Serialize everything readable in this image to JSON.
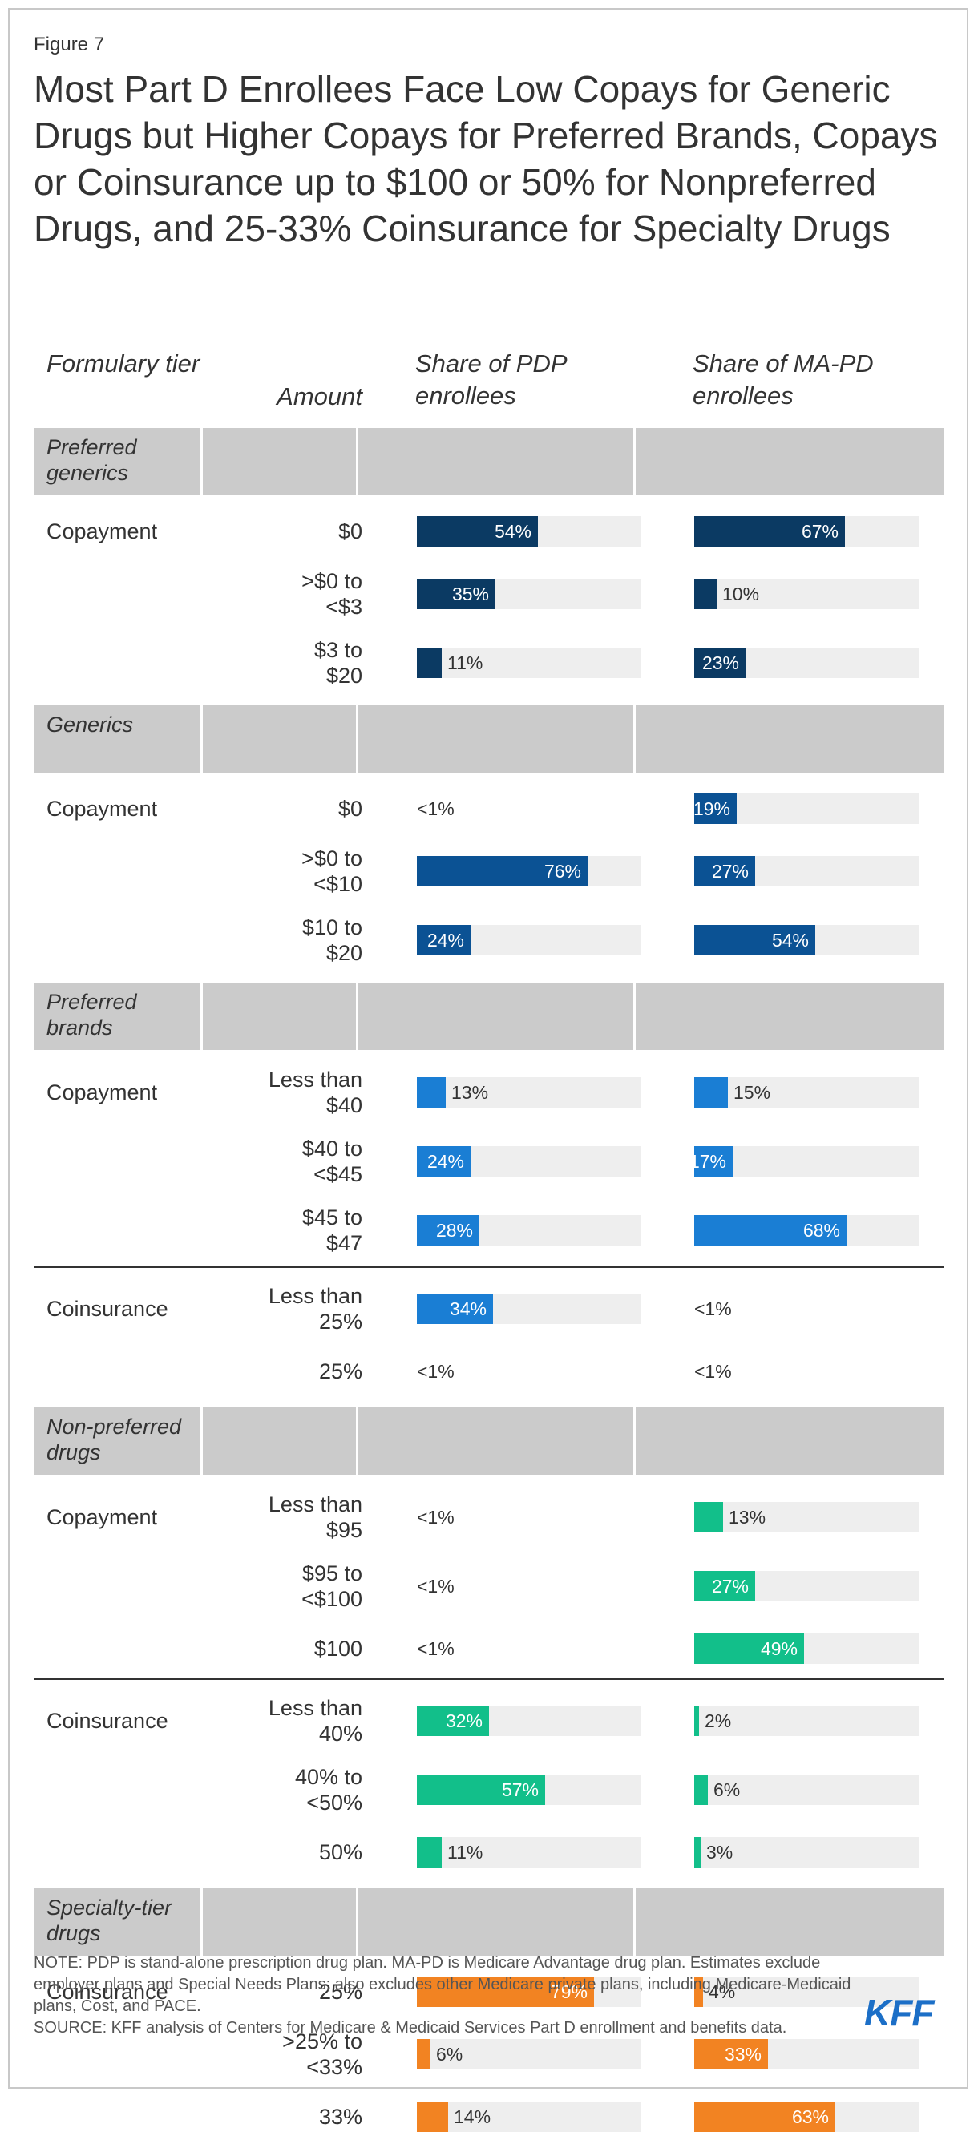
{
  "figure_label": "Figure 7",
  "title": "Most Part D Enrollees Face Low Copays for Generic Drugs but Higher Copays for Preferred Brands, Copays or Coinsurance up to $100 or 50% for Nonpreferred Drugs, and 25-33% Coinsurance for Specialty Drugs",
  "headers": {
    "tier": "Formulary tier",
    "amount": "Amount",
    "pdp": "Share of PDP enrollees",
    "mapd": "Share of MA-PD enrollees"
  },
  "colors": {
    "Preferred generics": "#0b3a63",
    "Generics": "#0b5294",
    "Preferred brands": "#1a7ed4",
    "Non-preferred drugs": "#12bf8a",
    "Specialty-tier drugs": "#f28322",
    "track": "#eeeeee",
    "band": "#cbcbcb",
    "logo": "#1c6fc7"
  },
  "chart_data": {
    "type": "bar",
    "orientation": "horizontal",
    "value_unit": "percent",
    "xlim": [
      0,
      100
    ],
    "series": [
      "Share of PDP enrollees",
      "Share of MA-PD enrollees"
    ],
    "tiers": [
      {
        "name": "Preferred generics",
        "groups": [
          {
            "type": "Copayment",
            "rows": [
              {
                "amount": "$0",
                "pdp": 54,
                "pdp_label": "54%",
                "mapd": 67,
                "mapd_label": "67%"
              },
              {
                "amount": ">$0 to <$3",
                "pdp": 35,
                "pdp_label": "35%",
                "mapd": 10,
                "mapd_label": "10%"
              },
              {
                "amount": "$3 to $20",
                "pdp": 11,
                "pdp_label": "11%",
                "mapd": 23,
                "mapd_label": "23%"
              }
            ]
          }
        ]
      },
      {
        "name": "Generics",
        "groups": [
          {
            "type": "Copayment",
            "rows": [
              {
                "amount": "$0",
                "pdp": 0,
                "pdp_label": "<1%",
                "mapd": 19,
                "mapd_label": "19%"
              },
              {
                "amount": ">$0 to <$10",
                "pdp": 76,
                "pdp_label": "76%",
                "mapd": 27,
                "mapd_label": "27%"
              },
              {
                "amount": "$10 to $20",
                "pdp": 24,
                "pdp_label": "24%",
                "mapd": 54,
                "mapd_label": "54%"
              }
            ]
          }
        ]
      },
      {
        "name": "Preferred brands",
        "groups": [
          {
            "type": "Copayment",
            "rows": [
              {
                "amount": "Less than $40",
                "pdp": 13,
                "pdp_label": "13%",
                "mapd": 15,
                "mapd_label": "15%"
              },
              {
                "amount": "$40 to <$45",
                "pdp": 24,
                "pdp_label": "24%",
                "mapd": 17,
                "mapd_label": "17%"
              },
              {
                "amount": "$45 to $47",
                "pdp": 28,
                "pdp_label": "28%",
                "mapd": 68,
                "mapd_label": "68%"
              }
            ]
          },
          {
            "type": "Coinsurance",
            "rows": [
              {
                "amount": "Less than 25%",
                "pdp": 34,
                "pdp_label": "34%",
                "mapd": 0,
                "mapd_label": "<1%"
              },
              {
                "amount": "25%",
                "pdp": 0,
                "pdp_label": "<1%",
                "mapd": 0,
                "mapd_label": "<1%"
              }
            ]
          }
        ]
      },
      {
        "name": "Non-preferred drugs",
        "groups": [
          {
            "type": "Copayment",
            "rows": [
              {
                "amount": "Less than $95",
                "pdp": 0,
                "pdp_label": "<1%",
                "mapd": 13,
                "mapd_label": "13%"
              },
              {
                "amount": "$95 to <$100",
                "pdp": 0,
                "pdp_label": "<1%",
                "mapd": 27,
                "mapd_label": "27%"
              },
              {
                "amount": "$100",
                "pdp": 0,
                "pdp_label": "<1%",
                "mapd": 49,
                "mapd_label": "49%"
              }
            ]
          },
          {
            "type": "Coinsurance",
            "rows": [
              {
                "amount": "Less than 40%",
                "pdp": 32,
                "pdp_label": "32%",
                "mapd": 2,
                "mapd_label": "2%"
              },
              {
                "amount": "40% to <50%",
                "pdp": 57,
                "pdp_label": "57%",
                "mapd": 6,
                "mapd_label": "6%"
              },
              {
                "amount": "50%",
                "pdp": 11,
                "pdp_label": "11%",
                "mapd": 3,
                "mapd_label": "3%"
              }
            ]
          }
        ]
      },
      {
        "name": "Specialty-tier drugs",
        "groups": [
          {
            "type": "Coinsurance",
            "rows": [
              {
                "amount": "25%",
                "pdp": 79,
                "pdp_label": "79%",
                "mapd": 4,
                "mapd_label": "4%"
              },
              {
                "amount": ">25% to <33%",
                "pdp": 6,
                "pdp_label": "6%",
                "mapd": 33,
                "mapd_label": "33%"
              },
              {
                "amount": "33%",
                "pdp": 14,
                "pdp_label": "14%",
                "mapd": 63,
                "mapd_label": "63%"
              }
            ]
          }
        ]
      }
    ]
  },
  "note": "NOTE: PDP is stand-alone prescription drug plan. MA-PD is Medicare Advantage drug plan. Estimates exclude employer plans and Special Needs Plans; also excludes other Medicare private plans, including Medicare-Medicaid plans, Cost, and PACE.",
  "source": "SOURCE: KFF analysis of Centers for Medicare & Medicaid Services Part D enrollment and benefits data.",
  "logo": "KFF"
}
